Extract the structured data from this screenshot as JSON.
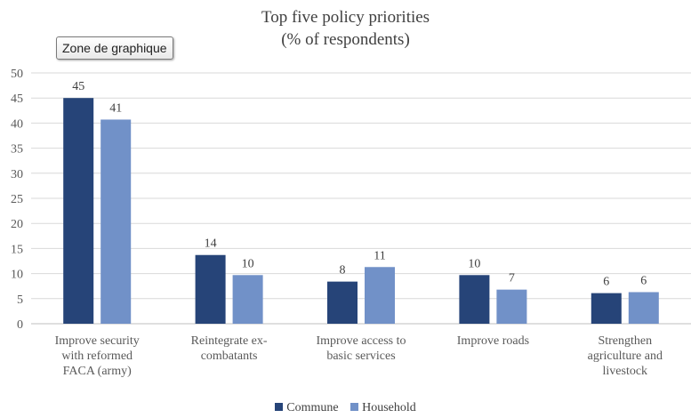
{
  "chart_data": {
    "type": "bar",
    "title": "Top five policy priorities",
    "subtitle": "(% of respondents)",
    "categories": [
      [
        "Improve security",
        "with reformed",
        "FACA (army)"
      ],
      [
        "Reintegrate ex-",
        "combatants"
      ],
      [
        "Improve access to",
        "basic services"
      ],
      [
        "Improve roads"
      ],
      [
        "Strengthen",
        "agriculture and",
        "livestock"
      ]
    ],
    "series": [
      {
        "name": "Commune",
        "color": "#264478",
        "values": [
          45,
          13.7,
          8.4,
          9.7,
          6.1
        ],
        "labels": [
          "45",
          "14",
          "8",
          "10",
          "6"
        ]
      },
      {
        "name": "Household",
        "color": "#7191C8",
        "values": [
          40.7,
          9.7,
          11.3,
          6.8,
          6.3
        ],
        "labels": [
          "41",
          "10",
          "11",
          "7",
          "6"
        ]
      }
    ],
    "ylim": [
      0,
      50
    ],
    "yticks": [
      0,
      5,
      10,
      15,
      20,
      25,
      30,
      35,
      40,
      45,
      50
    ],
    "grid": true,
    "legend": "bottom"
  },
  "tooltip": {
    "label": "Zone de graphique"
  }
}
